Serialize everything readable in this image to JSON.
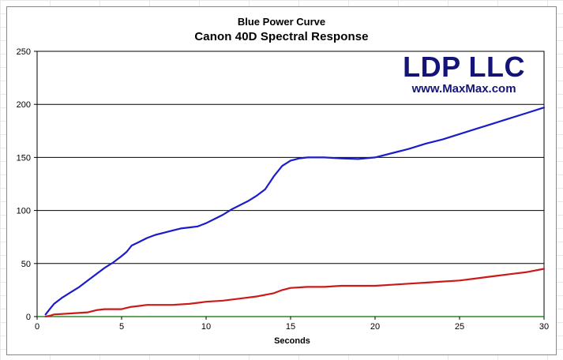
{
  "chart_data": {
    "type": "line",
    "title": "Blue Power Curve",
    "subtitle": "Canon 40D Spectral Response",
    "xlabel": "Seconds",
    "ylabel": "",
    "xlim": [
      0,
      30
    ],
    "ylim": [
      0,
      250
    ],
    "x_ticks": [
      0,
      5,
      10,
      15,
      20,
      25,
      30
    ],
    "y_ticks": [
      0,
      50,
      100,
      150,
      200,
      250
    ],
    "grid": "horizontal",
    "legend": "none",
    "series": [
      {
        "color": "#1c1cc8",
        "points": [
          [
            0.5,
            2
          ],
          [
            0.8,
            8
          ],
          [
            1,
            12
          ],
          [
            1.5,
            18
          ],
          [
            2,
            23
          ],
          [
            2.5,
            28
          ],
          [
            3,
            34
          ],
          [
            3.5,
            40
          ],
          [
            4,
            46
          ],
          [
            4.5,
            51
          ],
          [
            5,
            57
          ],
          [
            5.3,
            61
          ],
          [
            5.6,
            67
          ],
          [
            6,
            70
          ],
          [
            6.5,
            74
          ],
          [
            7,
            77
          ],
          [
            7.5,
            79
          ],
          [
            8,
            81
          ],
          [
            8.5,
            83
          ],
          [
            9,
            84
          ],
          [
            9.5,
            85
          ],
          [
            10,
            88
          ],
          [
            10.5,
            92
          ],
          [
            11,
            96
          ],
          [
            11.5,
            101
          ],
          [
            12,
            105
          ],
          [
            12.5,
            109
          ],
          [
            13,
            114
          ],
          [
            13.5,
            120
          ],
          [
            14,
            132
          ],
          [
            14.5,
            142
          ],
          [
            15,
            147
          ],
          [
            15.5,
            149
          ],
          [
            16,
            150
          ],
          [
            16.5,
            150
          ],
          [
            17,
            150
          ],
          [
            18,
            149
          ],
          [
            19,
            148.5
          ],
          [
            20,
            150
          ],
          [
            21,
            154
          ],
          [
            22,
            158
          ],
          [
            23,
            163
          ],
          [
            24,
            167
          ],
          [
            25,
            172
          ],
          [
            26,
            177
          ],
          [
            27,
            182
          ],
          [
            28,
            187
          ],
          [
            29,
            192
          ],
          [
            30,
            197
          ]
        ]
      },
      {
        "color": "#cc1a1a",
        "points": [
          [
            0.5,
            0
          ],
          [
            0.8,
            1
          ],
          [
            1,
            2
          ],
          [
            2,
            3
          ],
          [
            3,
            4
          ],
          [
            3.5,
            6
          ],
          [
            4,
            7
          ],
          [
            5,
            7
          ],
          [
            5.5,
            9
          ],
          [
            6,
            10
          ],
          [
            6.5,
            11
          ],
          [
            7,
            11
          ],
          [
            8,
            11
          ],
          [
            9,
            12
          ],
          [
            10,
            14
          ],
          [
            11,
            15
          ],
          [
            12,
            17
          ],
          [
            13,
            19
          ],
          [
            14,
            22
          ],
          [
            14.5,
            25
          ],
          [
            15,
            27
          ],
          [
            16,
            28
          ],
          [
            17,
            28
          ],
          [
            18,
            29
          ],
          [
            19,
            29
          ],
          [
            20,
            29
          ],
          [
            21,
            30
          ],
          [
            22,
            31
          ],
          [
            23,
            32
          ],
          [
            24,
            33
          ],
          [
            25,
            34
          ],
          [
            26,
            36
          ],
          [
            27,
            38
          ],
          [
            28,
            40
          ],
          [
            29,
            42
          ],
          [
            30,
            45
          ]
        ]
      }
    ]
  },
  "watermark": {
    "name": "LDP LLC",
    "url": "www.MaxMax.com",
    "color": "#141478"
  }
}
